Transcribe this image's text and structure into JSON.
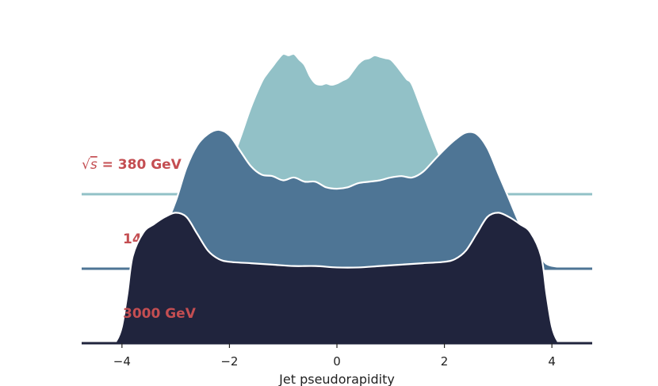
{
  "chart_data": {
    "type": "area",
    "title": "",
    "xlabel": "Jet pseudorapidity",
    "ylabel": "",
    "xlim": [
      -4.75,
      4.75
    ],
    "xticks": [
      -4,
      -2,
      0,
      2,
      4
    ],
    "xtick_labels": [
      "−4",
      "−2",
      "0",
      "2",
      "4"
    ],
    "grid": false,
    "legend": "none",
    "label_prefix": "√",
    "label_prefix_var": "s",
    "label_prefix_eq": " = ",
    "series": [
      {
        "name": "380 GeV",
        "color": "#92c1c7",
        "x": [
          -4.75,
          -3.0,
          -2.8,
          -2.6,
          -2.4,
          -2.2,
          -2.0,
          -1.8,
          -1.6,
          -1.4,
          -1.3,
          -1.2,
          -1.1,
          -1.0,
          -0.9,
          -0.8,
          -0.7,
          -0.6,
          -0.5,
          -0.4,
          -0.3,
          -0.2,
          -0.1,
          0.0,
          0.1,
          0.2,
          0.3,
          0.4,
          0.5,
          0.6,
          0.7,
          0.8,
          0.9,
          1.0,
          1.1,
          1.2,
          1.3,
          1.4,
          1.6,
          1.8,
          2.0,
          2.2,
          2.4,
          2.6,
          2.8,
          3.0,
          4.75
        ],
        "values": [
          0,
          0,
          0.005,
          0.02,
          0.05,
          0.09,
          0.2,
          0.4,
          0.62,
          0.8,
          0.86,
          0.91,
          0.96,
          1.0,
          0.99,
          1.0,
          0.96,
          0.92,
          0.84,
          0.79,
          0.78,
          0.79,
          0.78,
          0.79,
          0.81,
          0.83,
          0.88,
          0.93,
          0.96,
          0.97,
          0.99,
          0.98,
          0.97,
          0.96,
          0.92,
          0.87,
          0.82,
          0.78,
          0.58,
          0.38,
          0.2,
          0.09,
          0.05,
          0.02,
          0.01,
          0,
          0
        ]
      },
      {
        "name": "1400 GeV",
        "color": "#4e7595",
        "x": [
          -4.75,
          -3.95,
          -3.8,
          -3.6,
          -3.4,
          -3.2,
          -3.0,
          -2.8,
          -2.6,
          -2.4,
          -2.2,
          -2.0,
          -1.8,
          -1.6,
          -1.4,
          -1.2,
          -1.0,
          -0.8,
          -0.6,
          -0.4,
          -0.2,
          0.0,
          0.2,
          0.4,
          0.6,
          0.8,
          1.0,
          1.2,
          1.4,
          1.6,
          1.8,
          2.0,
          2.2,
          2.4,
          2.6,
          2.8,
          3.0,
          3.2,
          3.4,
          3.6,
          3.8,
          4.0,
          4.75
        ],
        "values": [
          0,
          0,
          0.04,
          0.1,
          0.18,
          0.3,
          0.48,
          0.72,
          0.88,
          0.96,
          0.99,
          0.95,
          0.84,
          0.73,
          0.67,
          0.66,
          0.63,
          0.65,
          0.62,
          0.62,
          0.58,
          0.57,
          0.58,
          0.61,
          0.62,
          0.63,
          0.65,
          0.66,
          0.65,
          0.69,
          0.77,
          0.85,
          0.92,
          0.97,
          0.96,
          0.86,
          0.68,
          0.5,
          0.32,
          0.18,
          0.08,
          0.02,
          0
        ]
      },
      {
        "name": "3000 GeV",
        "color": "#20243d",
        "x": [
          -4.75,
          -4.2,
          -4.1,
          -4.0,
          -3.9,
          -3.8,
          -3.6,
          -3.4,
          -3.2,
          -3.0,
          -2.8,
          -2.6,
          -2.4,
          -2.2,
          -2.0,
          -1.6,
          -1.2,
          -0.8,
          -0.4,
          0.0,
          0.4,
          0.8,
          1.2,
          1.6,
          2.0,
          2.2,
          2.4,
          2.6,
          2.8,
          3.0,
          3.2,
          3.4,
          3.6,
          3.8,
          3.9,
          4.0,
          4.1,
          4.2,
          4.75
        ],
        "values": [
          0,
          0,
          0.02,
          0.12,
          0.35,
          0.62,
          0.79,
          0.85,
          0.9,
          0.93,
          0.9,
          0.78,
          0.66,
          0.6,
          0.58,
          0.57,
          0.56,
          0.55,
          0.55,
          0.54,
          0.54,
          0.55,
          0.56,
          0.57,
          0.58,
          0.6,
          0.66,
          0.78,
          0.9,
          0.93,
          0.9,
          0.85,
          0.79,
          0.62,
          0.35,
          0.12,
          0.02,
          0,
          0
        ]
      }
    ]
  }
}
